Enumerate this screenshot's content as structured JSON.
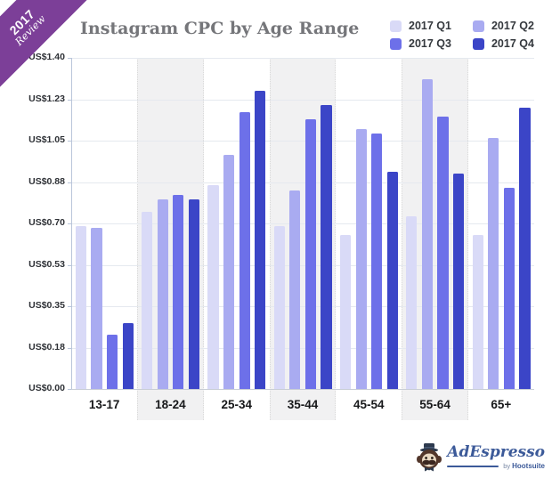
{
  "ribbon": {
    "line1": "2017",
    "line2": "Review",
    "color": "#7c3f98"
  },
  "title": "Instagram CPC by Age Range",
  "legend": [
    {
      "label": "2017 Q1",
      "color": "#d9daf7"
    },
    {
      "label": "2017 Q2",
      "color": "#a9abf1"
    },
    {
      "label": "2017 Q3",
      "color": "#6d70e9"
    },
    {
      "label": "2017 Q4",
      "color": "#3b45c7"
    }
  ],
  "chart_data": {
    "type": "bar",
    "title": "Instagram CPC by Age Range",
    "categories": [
      "13-17",
      "18-24",
      "25-34",
      "35-44",
      "45-54",
      "55-64",
      "65+"
    ],
    "series": [
      {
        "name": "2017 Q1",
        "color": "#d9daf7",
        "values": [
          0.69,
          0.75,
          0.86,
          0.69,
          0.65,
          0.73,
          0.65
        ]
      },
      {
        "name": "2017 Q2",
        "color": "#a9abf1",
        "values": [
          0.68,
          0.8,
          0.99,
          0.84,
          1.1,
          1.31,
          1.06
        ]
      },
      {
        "name": "2017 Q3",
        "color": "#6d70e9",
        "values": [
          0.23,
          0.82,
          1.17,
          1.14,
          1.08,
          1.15,
          0.85
        ]
      },
      {
        "name": "2017 Q4",
        "color": "#3b45c7",
        "values": [
          0.28,
          0.8,
          1.26,
          1.2,
          0.92,
          0.91,
          1.19
        ]
      }
    ],
    "ylabel": "",
    "xlabel": "",
    "ylim": [
      0,
      1.4
    ],
    "yticks_labels": [
      "US$0.00",
      "US$0.18",
      "US$0.35",
      "US$0.53",
      "US$0.70",
      "US$0.88",
      "US$1.05",
      "US$1.23",
      "US$1.40"
    ],
    "striped_groups": [
      1,
      3,
      5
    ],
    "grid": true,
    "legend_position": "top-right"
  },
  "footer": {
    "brand": "AdEspresso",
    "by": "by",
    "by_brand": "Hootsuite"
  }
}
